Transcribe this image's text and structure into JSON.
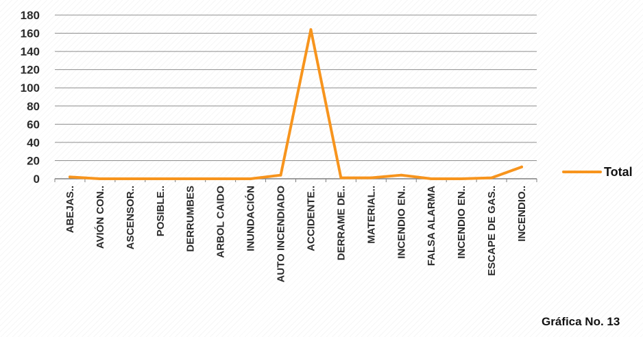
{
  "chart_data": {
    "type": "line",
    "categories": [
      "ABEJAS..",
      "AVIÓN CON..",
      "ASCENSOR..",
      "POSIBLE..",
      "DERRUMBES",
      "ARBOL CAIDO",
      "INUNDACIÓN",
      "AUTO INCENDIADO",
      "ACCIDENTE..",
      "DERRAME DE..",
      "MATERIAL..",
      "INCENDIO EN..",
      "FALSA ALARMA",
      "INCENDIO EN..",
      "ESCAPE DE GAS..",
      "INCENDIO.."
    ],
    "series": [
      {
        "name": "Total",
        "color": "#f7941d",
        "values": [
          2,
          0,
          0,
          0,
          0,
          0,
          0,
          4,
          164,
          1,
          1,
          4,
          0,
          0,
          1,
          13
        ]
      }
    ],
    "ylim": [
      0,
      180
    ],
    "yticks": [
      0,
      20,
      40,
      60,
      80,
      100,
      120,
      140,
      160,
      180
    ],
    "grid": true,
    "legend_position": "right"
  },
  "caption": "Gráfica No. 13",
  "colors": {
    "line": "#f7941d",
    "grid": "#8c8c8c",
    "axis": "#7f7f7f"
  }
}
